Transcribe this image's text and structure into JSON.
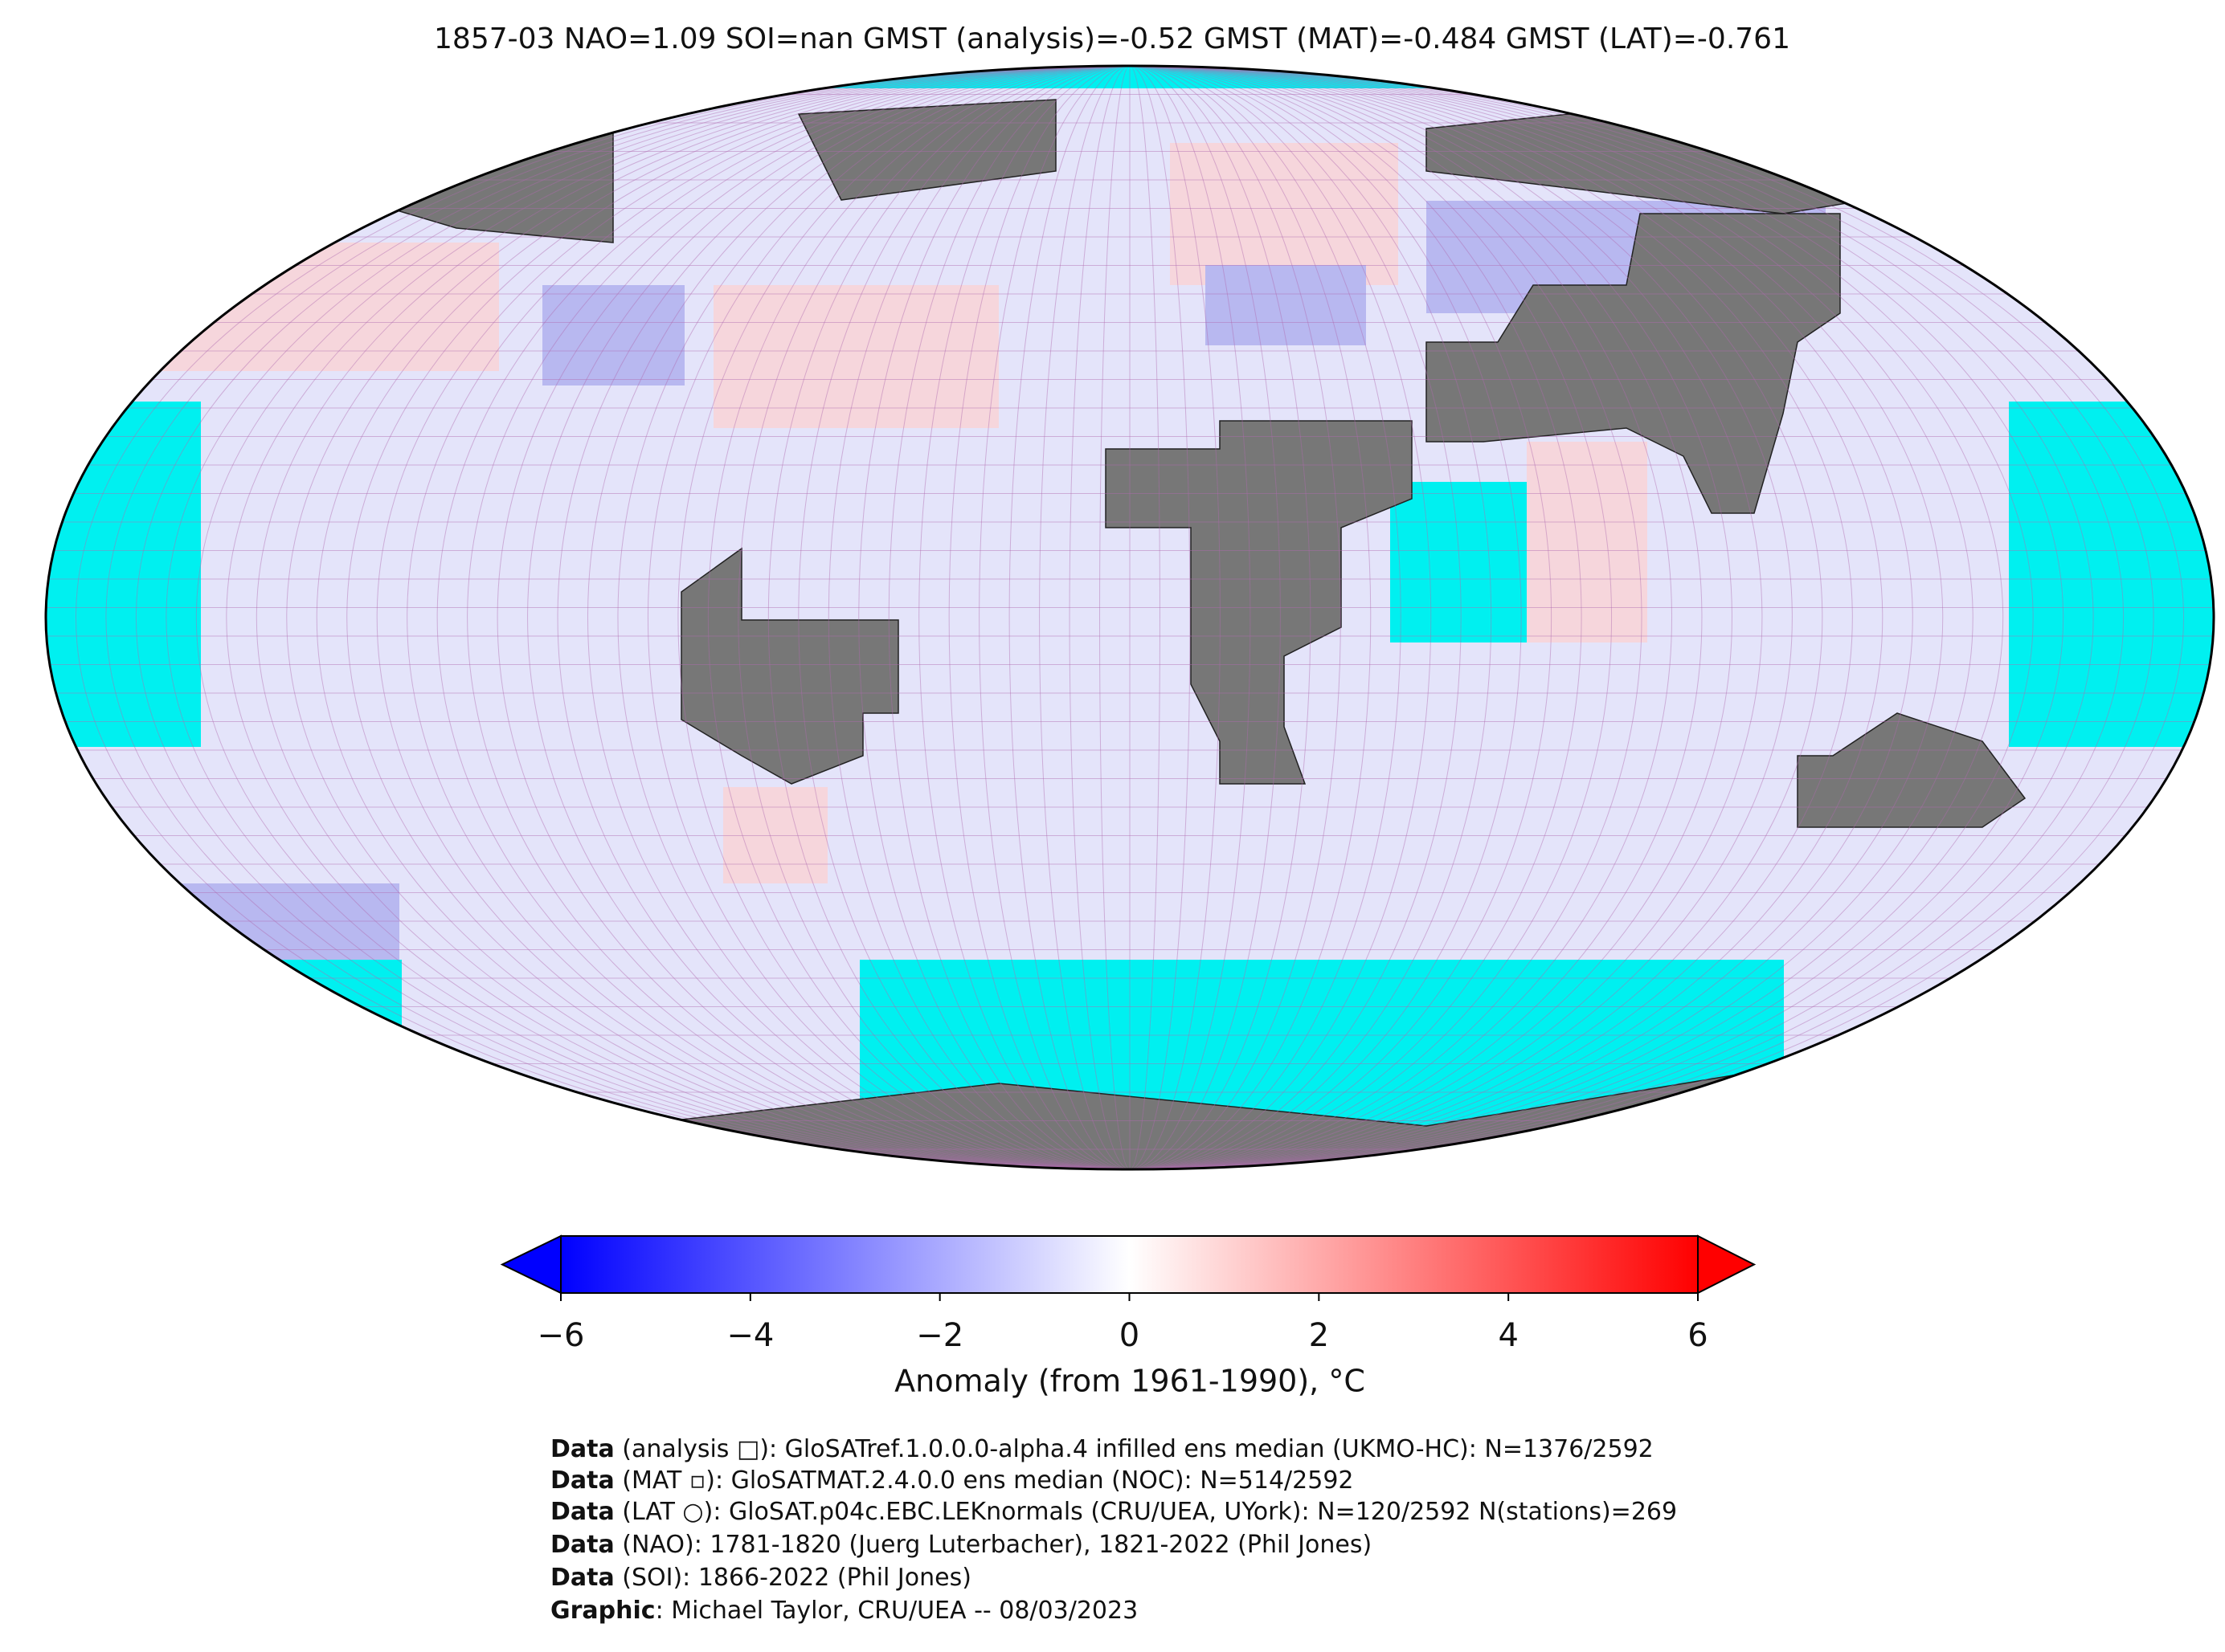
{
  "title": "1857-03 NAO=1.09 SOI=nan GMST (analysis)=-0.52 GMST (MAT)=-0.484 GMST (LAT)=-0.761",
  "colorbar": {
    "label": "Anomaly (from 1961-1990), °C",
    "lim": [
      -6,
      6
    ],
    "ticks": [
      {
        "value": -6,
        "label": "−6"
      },
      {
        "value": -4,
        "label": "−4"
      },
      {
        "value": -2,
        "label": "−2"
      },
      0,
      2,
      4,
      6
    ],
    "colors": [
      "#0000ff",
      "#ffffff",
      "#ff0000"
    ]
  },
  "credits": [
    {
      "bold": "Data",
      "text": " (analysis □): GloSATref.1.0.0.0-alpha.4 infilled ens median (UKMO-HC): N=1376/2592"
    },
    {
      "bold": "Data",
      "text": " (MAT ▫): GloSATMAT.2.4.0.0 ens median (NOC): N=514/2592"
    },
    {
      "bold": "Data",
      "text": " (LAT ○): GloSAT.p04c.EBC.LEKnormals (CRU/UEA, UYork): N=120/2592 N(stations)=269"
    },
    {
      "bold": "Data",
      "text": " (NAO): 1781-1820 (Juerg Luterbacher), 1821-2022 (Phil Jones)"
    },
    {
      "bold": "Data",
      "text": " (SOI): 1866-2022 (Phil Jones)"
    },
    {
      "bold": "Graphic",
      "text": ": Michael Taylor, CRU/UEA -- 08/03/2023"
    }
  ]
}
